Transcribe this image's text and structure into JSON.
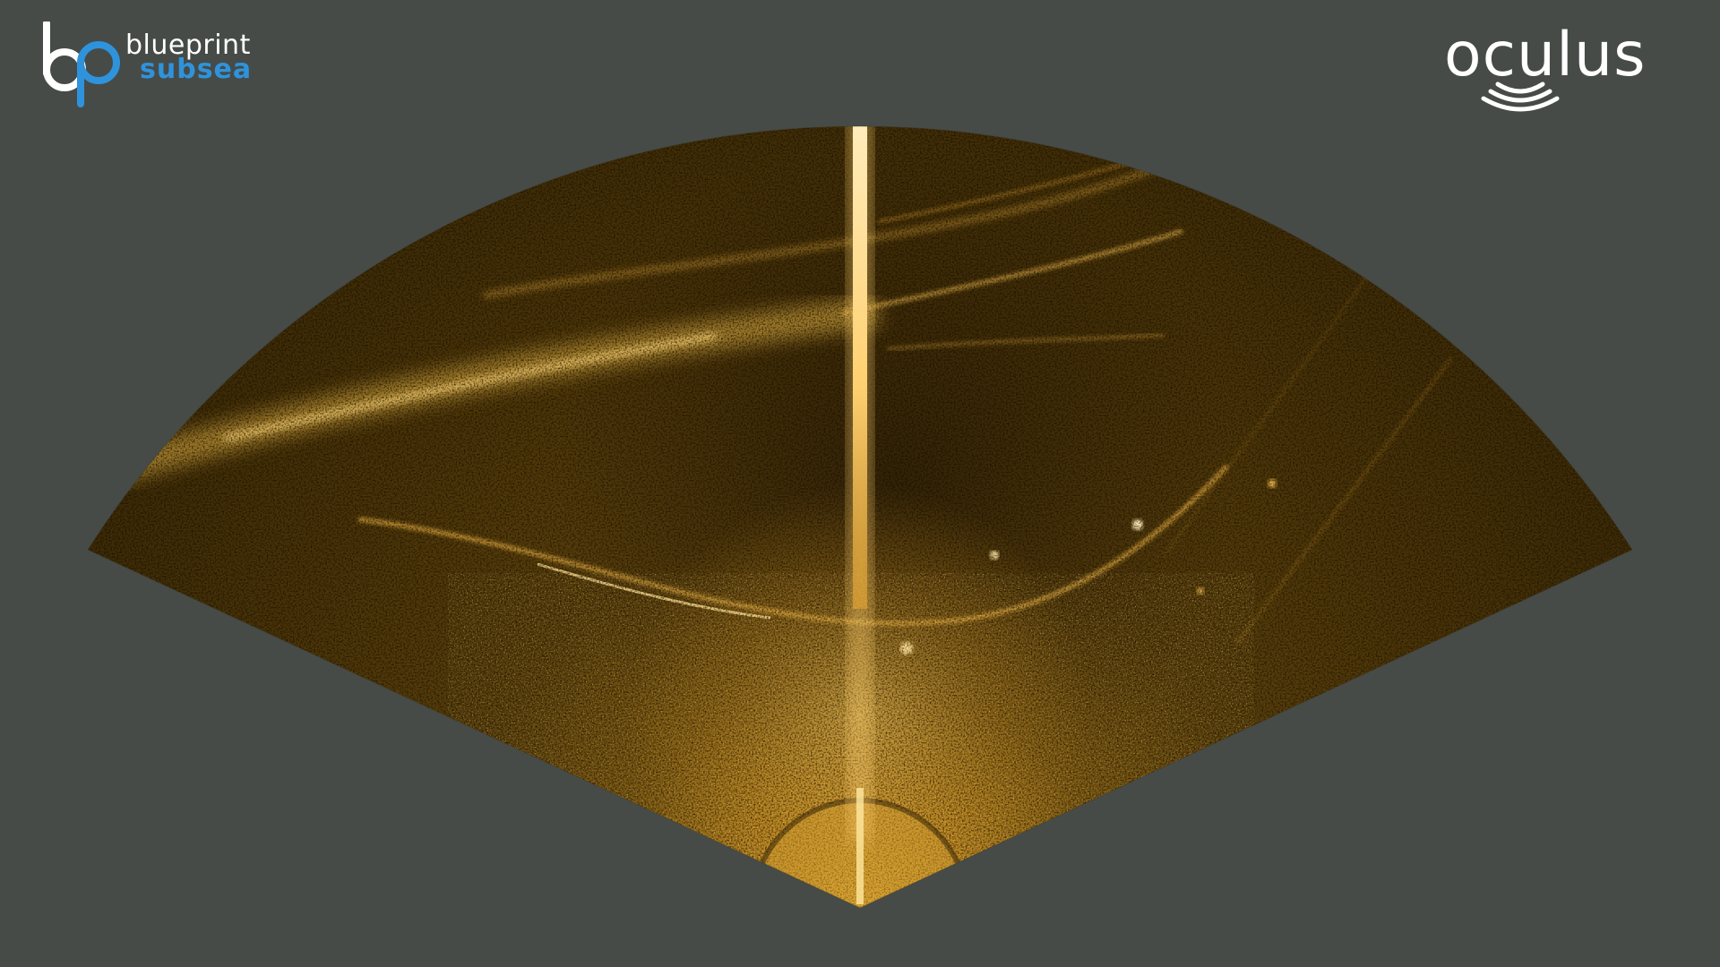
{
  "app": {
    "view": "sonar-fan-display"
  },
  "branding": {
    "left_logo": {
      "icon": "blueprint-bp-logo-icon",
      "line1": "blueprint",
      "line2": "subsea",
      "accent_color": "#2f93dc"
    },
    "right_logo": {
      "text": "oculus",
      "icon": "sonar-waves-icon",
      "color": "#ffffff"
    }
  },
  "sonar": {
    "palette": {
      "background": "#464b48",
      "dark": "#2a1d05",
      "mid": "#7a5a10",
      "bright": "#f0b43a",
      "highlight": "#fff0c0"
    }
  }
}
